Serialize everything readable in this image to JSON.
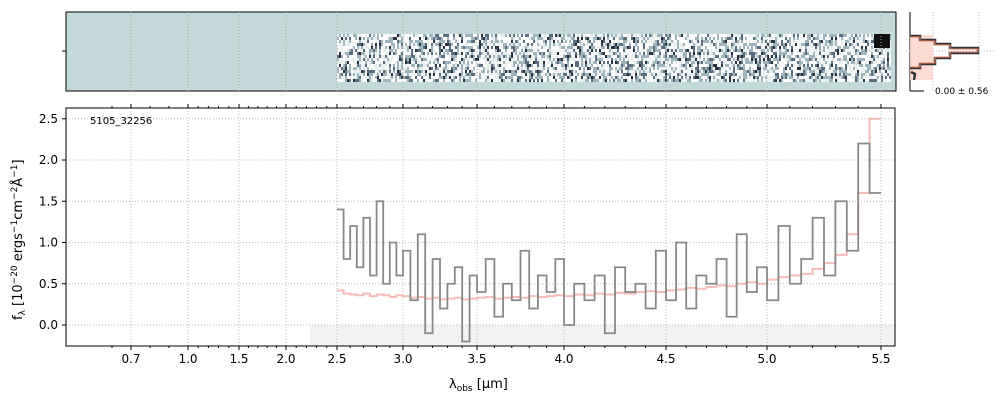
{
  "chart_data": {
    "type": "line",
    "object_label": "5105_32256",
    "xlabel": "λobs [μm]",
    "xlabel_main": "λ",
    "xlabel_sub": "obs",
    "xlabel_unit": " [μm]",
    "ylabel": "fλ [10^-20 ergs^-1 cm^-2 Å^-1]",
    "ylabel_text": "f",
    "ylabel_sub": "λ",
    "ylabel_unit_a": " [10",
    "ylabel_exp1": "−20",
    "ylabel_unit_b": " ergs",
    "ylabel_exp2": "−1",
    "ylabel_unit_c": "cm",
    "ylabel_exp3": "−2",
    "ylabel_unit_d": "Å",
    "ylabel_exp4": "−1",
    "ylabel_unit_e": "]",
    "xticks": [
      "0.7",
      "1.0",
      "1.5",
      "2.0",
      "2.5",
      "3.0",
      "3.5",
      "4.0",
      "4.5",
      "5.0",
      "5.5"
    ],
    "xtick_values": [
      0.7,
      1.0,
      1.5,
      2.0,
      2.5,
      3.0,
      3.5,
      4.0,
      4.5,
      5.0,
      5.5
    ],
    "yticks": [
      "0.0",
      "0.5",
      "1.0",
      "1.5",
      "2.0",
      "2.5"
    ],
    "ytick_values": [
      0,
      0.5,
      1.0,
      1.5,
      2.0,
      2.5
    ],
    "ylim": [
      -0.27,
      2.63
    ],
    "grid": true,
    "histogram_label": "0.00 ± 0.56",
    "series": [
      {
        "name": "flux",
        "color": "#888888",
        "x": [
          2.5,
          2.55,
          2.6,
          2.65,
          2.7,
          2.75,
          2.8,
          2.85,
          2.9,
          2.95,
          3.0,
          3.05,
          3.1,
          3.15,
          3.2,
          3.25,
          3.3,
          3.35,
          3.4,
          3.45,
          3.5,
          3.55,
          3.6,
          3.65,
          3.7,
          3.75,
          3.8,
          3.85,
          3.9,
          3.95,
          4.0,
          4.05,
          4.1,
          4.15,
          4.2,
          4.25,
          4.3,
          4.35,
          4.4,
          4.45,
          4.5,
          4.55,
          4.6,
          4.65,
          4.7,
          4.75,
          4.8,
          4.85,
          4.9,
          4.95,
          5.0,
          5.05,
          5.1,
          5.15,
          5.2,
          5.25,
          5.3,
          5.35,
          5.4,
          5.45
        ],
        "values": [
          1.4,
          0.8,
          1.2,
          0.7,
          1.3,
          0.6,
          1.5,
          0.5,
          1.0,
          0.6,
          0.9,
          0.3,
          1.1,
          -0.1,
          0.8,
          0.2,
          0.5,
          0.7,
          -0.2,
          0.6,
          0.4,
          0.8,
          0.1,
          0.5,
          0.3,
          0.9,
          0.2,
          0.6,
          0.4,
          0.8,
          0.0,
          0.5,
          0.3,
          0.6,
          -0.1,
          0.7,
          0.4,
          0.5,
          0.2,
          0.9,
          0.3,
          1.0,
          0.2,
          0.6,
          0.5,
          0.8,
          0.1,
          1.1,
          0.4,
          0.7,
          0.3,
          1.2,
          0.5,
          0.8,
          1.3,
          0.6,
          1.5,
          0.9,
          2.2,
          1.6
        ]
      },
      {
        "name": "model",
        "color": "#f4a09a",
        "values": [
          0.42,
          0.38,
          0.37,
          0.36,
          0.38,
          0.35,
          0.37,
          0.36,
          0.34,
          0.36,
          0.35,
          0.33,
          0.34,
          0.32,
          0.33,
          0.31,
          0.32,
          0.33,
          0.31,
          0.32,
          0.33,
          0.34,
          0.32,
          0.33,
          0.34,
          0.33,
          0.35,
          0.34,
          0.35,
          0.36,
          0.35,
          0.37,
          0.36,
          0.38,
          0.37,
          0.39,
          0.38,
          0.4,
          0.41,
          0.4,
          0.42,
          0.43,
          0.45,
          0.44,
          0.46,
          0.48,
          0.47,
          0.5,
          0.52,
          0.5,
          0.55,
          0.58,
          0.6,
          0.62,
          0.68,
          0.75,
          0.85,
          1.1,
          1.6,
          2.5
        ]
      }
    ]
  }
}
